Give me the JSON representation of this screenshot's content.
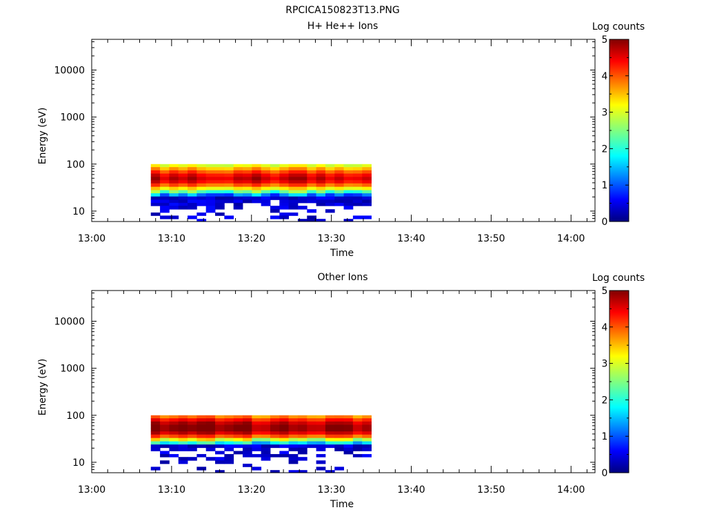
{
  "figure_title": "RPCICA150823T13.PNG",
  "chart_data": [
    {
      "type": "heatmap",
      "title": "H+ He++ Ions",
      "xlabel": "Time",
      "ylabel": "Energy (eV)",
      "x_ticks": [
        "13:00",
        "13:10",
        "13:20",
        "13:30",
        "13:40",
        "13:50",
        "14:00"
      ],
      "x_range": [
        "13:00",
        "14:03"
      ],
      "y_scale": "log",
      "y_ticks": [
        "10",
        "100",
        "1000",
        "10000"
      ],
      "y_range": [
        6,
        45000
      ],
      "colorbar": {
        "label": "Log counts",
        "ticks": [
          "0",
          "1",
          "2",
          "3",
          "4",
          "5"
        ],
        "range": [
          0,
          5
        ],
        "colormap": "rainbow"
      },
      "data_time_range": [
        "13:07.4",
        "13:35.0"
      ],
      "data_energy_range": [
        6,
        100
      ],
      "profile": [
        {
          "energy": 93,
          "log_counts": 3.1
        },
        {
          "energy": 80,
          "log_counts": 3.6
        },
        {
          "energy": 68,
          "log_counts": 4.1
        },
        {
          "energy": 58,
          "log_counts": 4.5
        },
        {
          "energy": 49,
          "log_counts": 4.7
        },
        {
          "energy": 42,
          "log_counts": 4.5
        },
        {
          "energy": 36,
          "log_counts": 4.0
        },
        {
          "energy": 30,
          "log_counts": 3.3
        },
        {
          "energy": 26,
          "log_counts": 2.4
        },
        {
          "energy": 22,
          "log_counts": 1.3
        },
        {
          "energy": 19,
          "log_counts": 0.6
        },
        {
          "energy": 16,
          "log_counts": 0.3
        },
        {
          "energy": 14,
          "log_counts": 0.2
        },
        {
          "energy": 12,
          "log_counts": 0.15
        },
        {
          "energy": 10,
          "log_counts": 0.1
        },
        {
          "energy": 8.7,
          "log_counts": 0.1
        },
        {
          "energy": 7.4,
          "log_counts": 0.1
        },
        {
          "energy": 6.3,
          "log_counts": 0.05
        }
      ]
    },
    {
      "type": "heatmap",
      "title": "Other Ions",
      "xlabel": "Time",
      "ylabel": "Energy (eV)",
      "x_ticks": [
        "13:00",
        "13:10",
        "13:20",
        "13:30",
        "13:40",
        "13:50",
        "14:00"
      ],
      "x_range": [
        "13:00",
        "14:03"
      ],
      "y_scale": "log",
      "y_ticks": [
        "10",
        "100",
        "1000",
        "10000"
      ],
      "y_range": [
        6,
        45000
      ],
      "colorbar": {
        "label": "Log counts",
        "ticks": [
          "0",
          "1",
          "2",
          "3",
          "4",
          "5"
        ],
        "range": [
          0,
          5
        ],
        "colormap": "rainbow"
      },
      "data_time_range": [
        "13:07.4",
        "13:35.0"
      ],
      "data_energy_range": [
        6,
        100
      ],
      "profile": [
        {
          "energy": 93,
          "log_counts": 3.8
        },
        {
          "energy": 80,
          "log_counts": 4.3
        },
        {
          "energy": 68,
          "log_counts": 4.7
        },
        {
          "energy": 58,
          "log_counts": 4.9
        },
        {
          "energy": 49,
          "log_counts": 4.9
        },
        {
          "energy": 42,
          "log_counts": 4.6
        },
        {
          "energy": 36,
          "log_counts": 4.0
        },
        {
          "energy": 30,
          "log_counts": 3.0
        },
        {
          "energy": 26,
          "log_counts": 1.8
        },
        {
          "energy": 22,
          "log_counts": 0.6
        },
        {
          "energy": 19,
          "log_counts": 0.2
        },
        {
          "energy": 16,
          "log_counts": 0.1
        },
        {
          "energy": 14,
          "log_counts": 0.1
        },
        {
          "energy": 12,
          "log_counts": 0.05
        },
        {
          "energy": 10,
          "log_counts": 0.05
        },
        {
          "energy": 8.7,
          "log_counts": 0.05
        },
        {
          "energy": 7.4,
          "log_counts": 0.03
        },
        {
          "energy": 6.3,
          "log_counts": 0.03
        }
      ]
    }
  ]
}
